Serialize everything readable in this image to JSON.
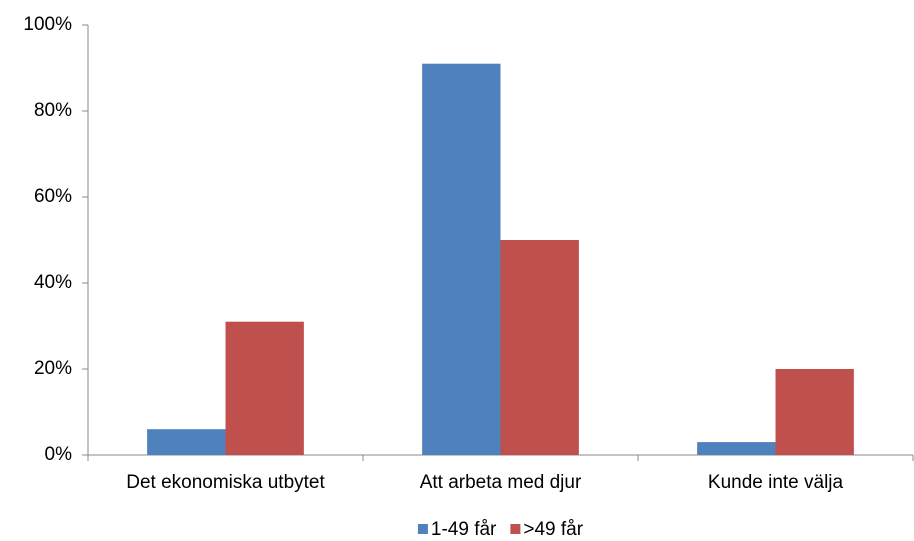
{
  "chart_data": {
    "type": "bar",
    "categories": [
      "Det ekonomiska utbytet",
      "Att arbeta med djur",
      "Kunde inte välja"
    ],
    "series": [
      {
        "name": "1-49 får",
        "color": "#4f81bd",
        "values": [
          6,
          91,
          3
        ]
      },
      {
        "name": ">49 får",
        "color": "#c0504d",
        "values": [
          31,
          50,
          20
        ]
      }
    ],
    "ylim": [
      0,
      100
    ],
    "yticks": [
      {
        "value": 0,
        "label": "0%"
      },
      {
        "value": 20,
        "label": "20%"
      },
      {
        "value": 40,
        "label": "40%"
      },
      {
        "value": 60,
        "label": "60%"
      },
      {
        "value": 80,
        "label": "80%"
      },
      {
        "value": 100,
        "label": "100%"
      }
    ],
    "grid": false,
    "legend": "bottom"
  }
}
